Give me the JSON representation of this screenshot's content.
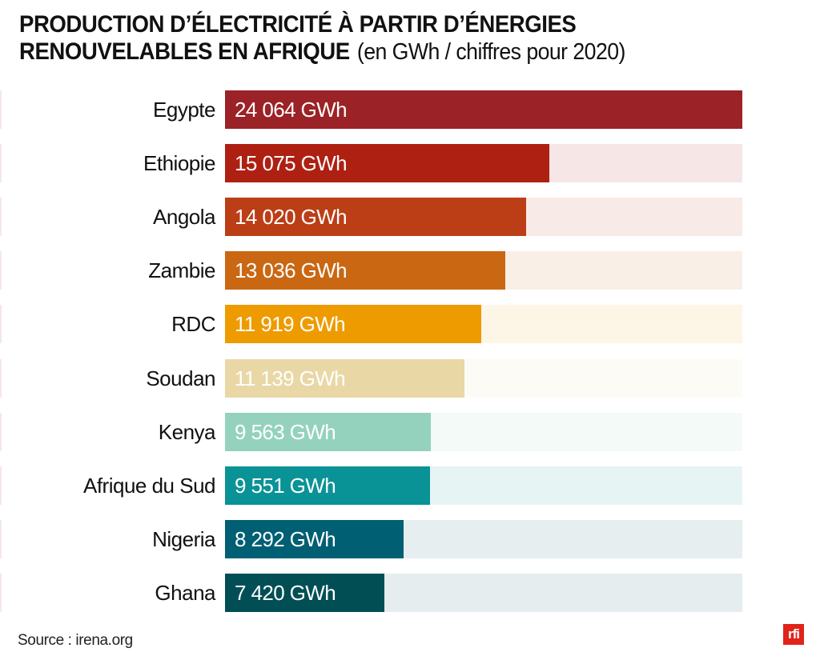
{
  "chart_data": {
    "type": "bar",
    "orientation": "horizontal",
    "title": "PRODUCTION D’ÉLECTRICITÉ À PARTIR D’ÉNERGIES RENOUVELABLES EN AFRIQUE",
    "title_line1": "PRODUCTION D’ÉLECTRICITÉ À PARTIR D’ÉNERGIES",
    "title_line2": "RENOUVELABLES EN AFRIQUE",
    "subtitle": "(en GWh / chiffres pour 2020)",
    "xlabel": "",
    "ylabel": "",
    "unit": "GWh",
    "xlim": [
      0,
      24064
    ],
    "grid": false,
    "legend": "none",
    "categories": [
      "Egypte",
      "Ethiopie",
      "Angola",
      "Zambie",
      "RDC",
      "Soudan",
      "Kenya",
      "Afrique du Sud",
      "Nigeria",
      "Ghana"
    ],
    "values": [
      24064,
      15075,
      14020,
      13036,
      11919,
      11139,
      9563,
      9551,
      8292,
      7420
    ],
    "data_labels": [
      "24 064 GWh",
      "15 075 GWh",
      "14 020 GWh",
      "13 036 GWh",
      "11 919 GWh",
      "11 139 GWh",
      "9 563 GWh",
      "9 551 GWh",
      "8 292 GWh",
      "7 420 GWh"
    ],
    "bar_colors": [
      "#9b2226",
      "#ae2012",
      "#bb3e17",
      "#ca6713",
      "#ee9b00",
      "#e9d8a6",
      "#94d2bd",
      "#0a9396",
      "#005f73",
      "#014f55"
    ],
    "track_colors": [
      "#f7e6e6",
      "#f7e6e6",
      "#f8eae6",
      "#f9efe6",
      "#fdf5e6",
      "#fcfbf6",
      "#f4faf8",
      "#e6f4f4",
      "#e6eef0",
      "#e6edef"
    ],
    "source": "Source : irena.org"
  },
  "footer": {
    "source": "Source : irena.org",
    "logo_text": "rfi",
    "logo_color": "#e2231a"
  }
}
